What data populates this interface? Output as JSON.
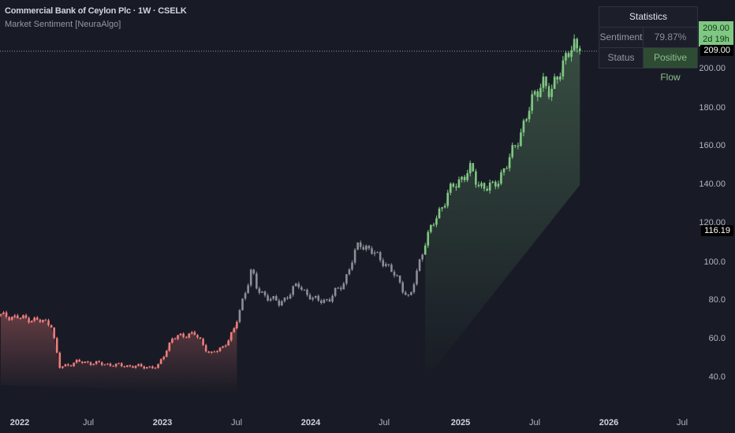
{
  "header": {
    "title": "Commercial Bank of Ceylon Plc · 1W · CSELK",
    "indicator": "Market Sentiment [NeuraAlgo]"
  },
  "statistics": {
    "title": "Statistics",
    "rows": [
      {
        "label": "Sentiment",
        "value": "79.87%"
      },
      {
        "label": "Status",
        "value": "Positive Flow"
      }
    ]
  },
  "price_tags": {
    "last_price": "209.00",
    "countdown": "2d 19h",
    "crosshair_price": "209.00",
    "marker_price": "116.19"
  },
  "colors": {
    "bullish": "#81c784",
    "neutral": "#8c8f97",
    "bearish": "#f07c7c",
    "background": "#181b25"
  },
  "chart_data": {
    "type": "candlestick",
    "interval": "1W",
    "y_ticks": [
      "200.00",
      "180.00",
      "160.00",
      "140.00",
      "120.00",
      "100.0",
      "80.0",
      "60.0",
      "40.0"
    ],
    "x_ticks": [
      "2022",
      "Jul",
      "2023",
      "Jul",
      "2024",
      "Jul",
      "2025",
      "Jul",
      "2026",
      "Jul"
    ],
    "ylim": [
      30,
      215
    ],
    "close_path": [
      [
        "2021-11-15",
        72
      ],
      [
        "2022-02-01",
        70
      ],
      [
        "2022-03-20",
        68
      ],
      [
        "2022-04-10",
        45
      ],
      [
        "2022-05-25",
        48
      ],
      [
        "2022-09-10",
        46
      ],
      [
        "2022-12-10",
        45
      ],
      [
        "2023-01-15",
        60
      ],
      [
        "2023-03-10",
        63
      ],
      [
        "2023-04-20",
        52
      ],
      [
        "2023-05-20",
        55
      ],
      [
        "2023-06-20",
        65
      ],
      [
        "2023-07-10",
        80
      ],
      [
        "2023-08-01",
        96
      ],
      [
        "2023-08-15",
        85
      ],
      [
        "2023-10-10",
        78
      ],
      [
        "2023-11-25",
        88
      ],
      [
        "2024-01-01",
        80
      ],
      [
        "2024-02-10",
        80
      ],
      [
        "2024-03-20",
        90
      ],
      [
        "2024-04-25",
        110
      ],
      [
        "2024-06-25",
        100
      ],
      [
        "2024-08-01",
        90
      ],
      [
        "2024-08-28",
        80
      ],
      [
        "2024-10-05",
        110
      ],
      [
        "2024-12-01",
        135
      ],
      [
        "2025-01-25",
        148
      ],
      [
        "2025-02-15",
        140
      ],
      [
        "2025-03-25",
        138
      ],
      [
        "2025-05-10",
        155
      ],
      [
        "2025-06-25",
        180
      ],
      [
        "2025-07-25",
        195
      ],
      [
        "2025-08-15",
        185
      ],
      [
        "2025-09-05",
        200
      ],
      [
        "2025-10-15",
        212
      ],
      [
        "2025-10-30",
        209
      ]
    ],
    "regimes": [
      {
        "until": "2023-07-01",
        "state": "bearish"
      },
      {
        "until": "2024-10-05",
        "state": "neutral"
      },
      {
        "until": "2026-12-31",
        "state": "bullish"
      }
    ]
  }
}
